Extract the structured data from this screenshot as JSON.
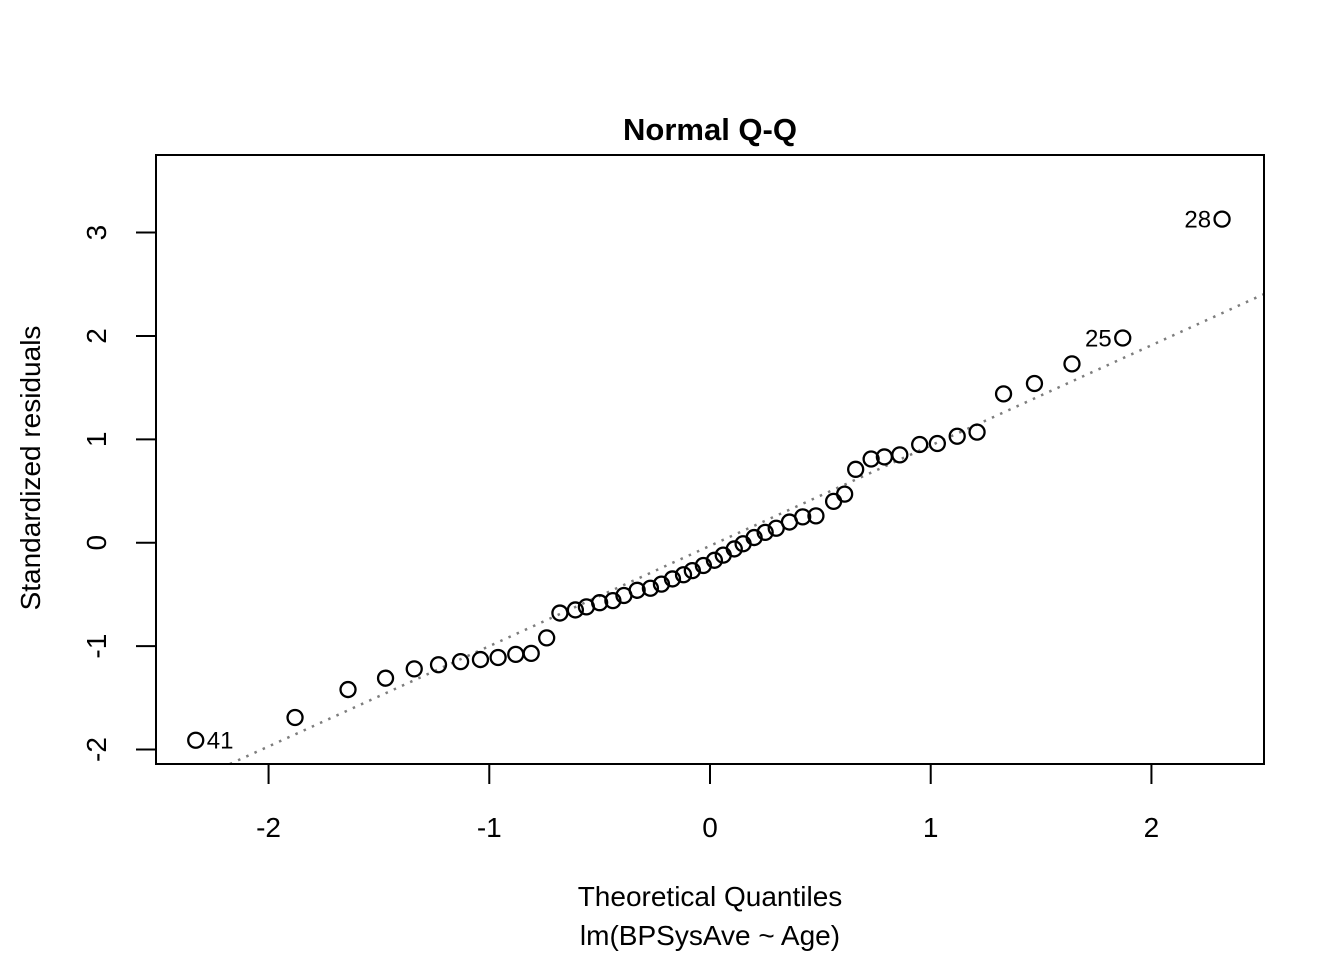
{
  "page": {
    "background_color": "#ffffff",
    "foreground_color": "#000000"
  },
  "chart_data": {
    "type": "scatter",
    "subtype": "normal-qq-plot",
    "title": "Normal Q-Q",
    "xlabel": "Theoretical Quantiles",
    "xlabel_sub": "lm(BPSysAve ~ Age)",
    "ylabel": "Standardized residuals",
    "xlim": [
      -2.51,
      2.51
    ],
    "ylim": [
      -2.14,
      3.75
    ],
    "x_ticks": [
      -2,
      -1,
      0,
      1,
      2
    ],
    "y_ticks": [
      -2,
      -1,
      0,
      1,
      2,
      3
    ],
    "grid": false,
    "legend": "none",
    "point_style": {
      "shape": "open-circle",
      "color": "#000000",
      "radius": 7.5,
      "stroke_width": 2.3
    },
    "reference_line": {
      "kind": "qqline",
      "slope": 0.97,
      "intercept": -0.03,
      "style": "dotted",
      "color": "#7d7d7d"
    },
    "points": [
      {
        "x": -2.33,
        "y": -1.91,
        "label": "41",
        "label_side": "right"
      },
      {
        "x": -1.88,
        "y": -1.69
      },
      {
        "x": -1.64,
        "y": -1.42
      },
      {
        "x": -1.47,
        "y": -1.31
      },
      {
        "x": -1.34,
        "y": -1.22
      },
      {
        "x": -1.23,
        "y": -1.18
      },
      {
        "x": -1.13,
        "y": -1.15
      },
      {
        "x": -1.04,
        "y": -1.13
      },
      {
        "x": -0.96,
        "y": -1.11
      },
      {
        "x": -0.88,
        "y": -1.08
      },
      {
        "x": -0.81,
        "y": -1.07
      },
      {
        "x": -0.74,
        "y": -0.92
      },
      {
        "x": -0.68,
        "y": -0.68
      },
      {
        "x": -0.61,
        "y": -0.65
      },
      {
        "x": -0.56,
        "y": -0.62
      },
      {
        "x": -0.5,
        "y": -0.58
      },
      {
        "x": -0.44,
        "y": -0.56
      },
      {
        "x": -0.39,
        "y": -0.51
      },
      {
        "x": -0.33,
        "y": -0.46
      },
      {
        "x": -0.27,
        "y": -0.44
      },
      {
        "x": -0.22,
        "y": -0.4
      },
      {
        "x": -0.17,
        "y": -0.35
      },
      {
        "x": -0.12,
        "y": -0.31
      },
      {
        "x": -0.08,
        "y": -0.27
      },
      {
        "x": -0.03,
        "y": -0.22
      },
      {
        "x": 0.02,
        "y": -0.17
      },
      {
        "x": 0.06,
        "y": -0.12
      },
      {
        "x": 0.11,
        "y": -0.06
      },
      {
        "x": 0.15,
        "y": -0.01
      },
      {
        "x": 0.2,
        "y": 0.05
      },
      {
        "x": 0.25,
        "y": 0.1
      },
      {
        "x": 0.3,
        "y": 0.14
      },
      {
        "x": 0.36,
        "y": 0.2
      },
      {
        "x": 0.42,
        "y": 0.25
      },
      {
        "x": 0.48,
        "y": 0.26
      },
      {
        "x": 0.56,
        "y": 0.4
      },
      {
        "x": 0.61,
        "y": 0.47
      },
      {
        "x": 0.66,
        "y": 0.71
      },
      {
        "x": 0.73,
        "y": 0.81
      },
      {
        "x": 0.79,
        "y": 0.83
      },
      {
        "x": 0.86,
        "y": 0.85
      },
      {
        "x": 0.95,
        "y": 0.95
      },
      {
        "x": 1.03,
        "y": 0.96
      },
      {
        "x": 1.12,
        "y": 1.03
      },
      {
        "x": 1.21,
        "y": 1.07
      },
      {
        "x": 1.33,
        "y": 1.44
      },
      {
        "x": 1.47,
        "y": 1.54
      },
      {
        "x": 1.64,
        "y": 1.73
      },
      {
        "x": 1.87,
        "y": 1.98,
        "label": "25",
        "label_side": "left"
      },
      {
        "x": 2.32,
        "y": 3.13,
        "label": "28",
        "label_side": "left"
      }
    ]
  }
}
